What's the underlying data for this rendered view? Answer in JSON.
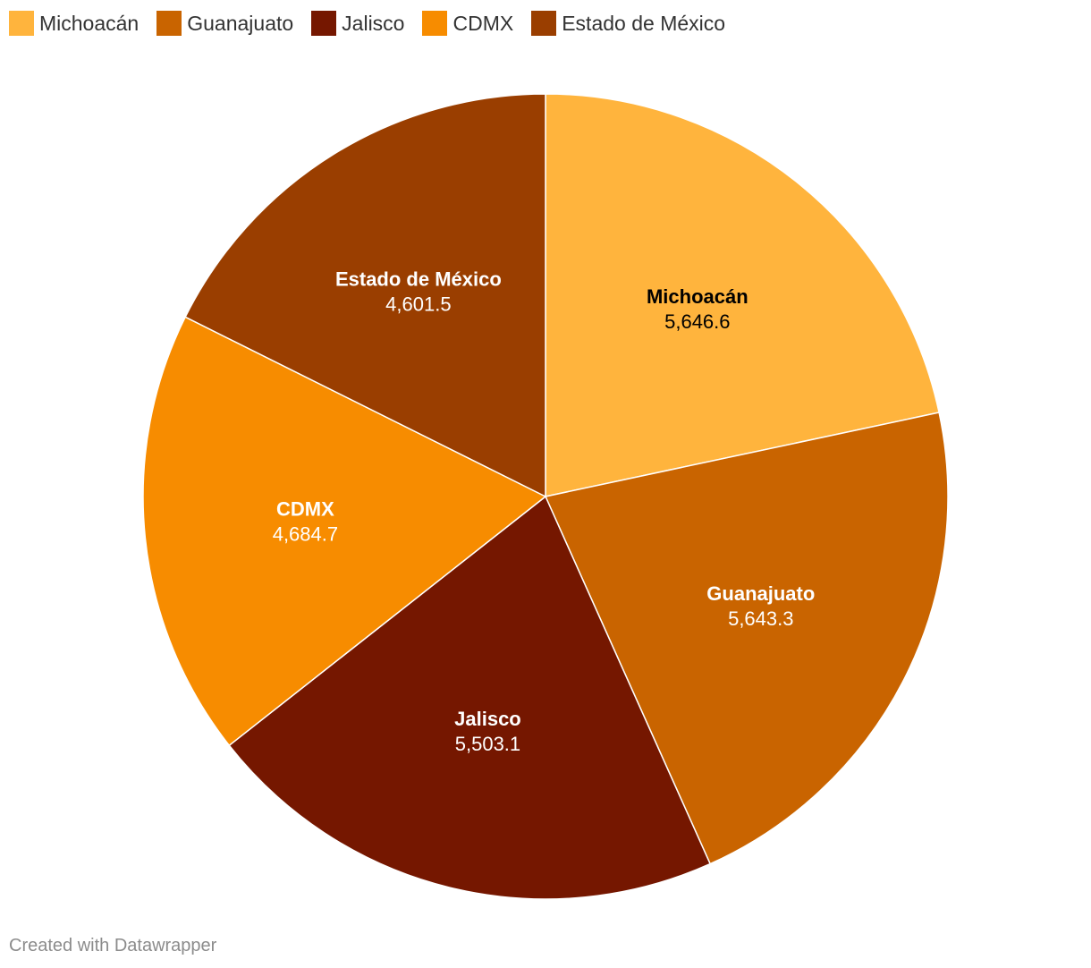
{
  "chart_data": {
    "type": "pie",
    "categories": [
      "Michoacán",
      "Guanajuato",
      "Jalisco",
      "CDMX",
      "Estado de México"
    ],
    "values": [
      5646.6,
      5643.3,
      5503.1,
      4684.7,
      4601.5
    ],
    "value_labels": [
      "5,646.6",
      "5,643.3",
      "5,503.1",
      "4,684.7",
      "4,601.5"
    ],
    "colors": [
      "#FFB43D",
      "#C96400",
      "#751700",
      "#F78C00",
      "#9A3E00"
    ],
    "label_colors": [
      "#000000",
      "#ffffff",
      "#ffffff",
      "#ffffff",
      "#ffffff"
    ],
    "start": "12 o'clock, clockwise",
    "legend_position": "top-left"
  },
  "credit": "Created with Datawrapper"
}
